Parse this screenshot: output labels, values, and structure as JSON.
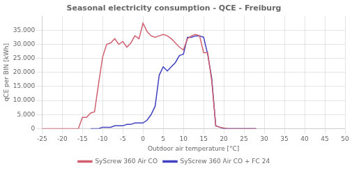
{
  "chart_data": {
    "type": "line",
    "title": "Seasonal electricity consumption - QCE - Freiburg",
    "xlabel": "Outdoor air temperature [°C]",
    "ylabel": "qCE per BIN [kWh]",
    "xlim": [
      -25,
      50
    ],
    "ylim": [
      0,
      40000
    ],
    "xticks": [
      -25,
      -20,
      -15,
      -10,
      -5,
      0,
      5,
      10,
      15,
      20,
      25,
      30,
      35,
      40,
      45,
      50
    ],
    "yticks": [
      0,
      {
        "value": 5000,
        "label": "5.000"
      },
      {
        "value": 10000,
        "label": "10.000"
      },
      {
        "value": 15000,
        "label": "15.000"
      },
      {
        "value": 20000,
        "label": "20.000"
      },
      {
        "value": 25000,
        "label": "25.000"
      },
      {
        "value": 30000,
        "label": "30.000"
      },
      {
        "value": 35000,
        "label": "35.000"
      }
    ],
    "grid": true,
    "legend": "bottom",
    "series": [
      {
        "name": "SyScrew 360 Air CO",
        "color": "#d06070",
        "x": [
          -25,
          -24,
          -23,
          -22,
          -21,
          -20,
          -19,
          -18,
          -17,
          -16,
          -15,
          -14,
          -13,
          -12,
          -11,
          -10,
          -9,
          -8,
          -7,
          -6,
          -5,
          -4,
          -3,
          -2,
          -1,
          0,
          1,
          2,
          3,
          4,
          5,
          6,
          7,
          8,
          9,
          10,
          11,
          12,
          13,
          14,
          15,
          16,
          17,
          18,
          19,
          20,
          21,
          22,
          23,
          24,
          25,
          26,
          27,
          28
        ],
        "values": [
          0,
          0,
          0,
          0,
          0,
          0,
          0,
          0,
          0,
          0,
          4000,
          4000,
          5500,
          6000,
          16000,
          25500,
          30000,
          30500,
          32000,
          30000,
          31000,
          29000,
          30500,
          33000,
          32000,
          37500,
          34500,
          33000,
          32500,
          33000,
          33500,
          33000,
          32000,
          30500,
          29000,
          28000,
          32000,
          33000,
          33500,
          33000,
          27000,
          27000,
          17000,
          1000,
          500,
          200,
          0,
          0,
          0,
          0,
          0,
          0,
          0,
          0
        ]
      },
      {
        "name": "SyScrew 360 Air CO + FC 24",
        "color": "#4040c0",
        "x": [
          -13,
          -12,
          -11,
          -10,
          -9,
          -8,
          -7,
          -6,
          -5,
          -4,
          -3,
          -2,
          -1,
          0,
          1,
          2,
          3,
          4,
          5,
          6,
          7,
          8,
          9,
          10,
          11,
          12,
          13,
          14,
          15,
          16,
          17,
          18,
          19,
          20,
          21,
          22,
          23,
          24,
          25,
          26,
          27,
          28
        ],
        "values": [
          0,
          0,
          0,
          500,
          500,
          500,
          1000,
          1000,
          1000,
          1500,
          1500,
          2000,
          2000,
          2000,
          3000,
          5000,
          8000,
          19000,
          22000,
          20500,
          22000,
          23500,
          26000,
          26500,
          32500,
          32500,
          33000,
          33000,
          32500,
          26500,
          18000,
          1000,
          500,
          0,
          0,
          0,
          0,
          0,
          0,
          0,
          0,
          0
        ]
      }
    ]
  }
}
